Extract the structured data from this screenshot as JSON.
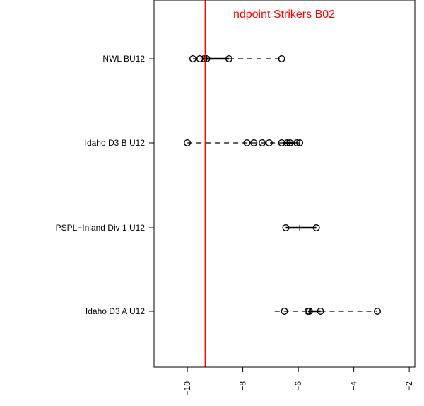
{
  "chart_data": {
    "type": "boxplot",
    "orientation": "horizontal",
    "title": "ndpoint Strikers B02",
    "xlim": [
      -11.2,
      -1.8
    ],
    "x_ticks": [
      -10,
      -8,
      -6,
      -4,
      -2
    ],
    "x_tick_labels": [
      "−10",
      "−8",
      "−6",
      "−4",
      "−2"
    ],
    "reference_line": {
      "x": -9.35,
      "color": "#ff0000"
    },
    "categories": [
      "NWL BU12",
      "Idaho D3 B U12",
      "PSPL−Inland Div 1 U12",
      "Idaho D3 A U12"
    ],
    "series": [
      {
        "category": "NWL BU12",
        "points": [
          -9.8,
          -9.55,
          -9.4,
          -9.3,
          -8.5,
          -6.6
        ],
        "box": {
          "q1": -9.45,
          "median": -9.3,
          "q3": -8.5
        },
        "whiskers": {
          "low": -9.8,
          "high": -6.6
        }
      },
      {
        "category": "Idaho D3 B U12",
        "points": [
          -10.0,
          -7.85,
          -7.6,
          -7.3,
          -7.05,
          -6.6,
          -6.4,
          -6.3,
          -6.05,
          -5.95
        ],
        "box": {
          "q1": -6.55,
          "median": -6.4,
          "q3": -6.1
        },
        "whiskers": {
          "low": -10.0,
          "high": -5.95
        }
      },
      {
        "category": "PSPL−Inland Div 1 U12",
        "points": [
          -6.45,
          -5.35
        ],
        "box": {
          "q1": -6.45,
          "median": -5.95,
          "q3": -5.35
        },
        "whiskers": {
          "low": -6.45,
          "high": -5.35
        }
      },
      {
        "category": "Idaho D3 A U12",
        "points": [
          -6.5,
          -5.65,
          -5.6,
          -5.2,
          -3.15
        ],
        "box": {
          "q1": -5.65,
          "median": -5.6,
          "q3": -5.2
        },
        "whiskers": {
          "low": -6.85,
          "high": -3.15
        }
      }
    ],
    "colors": {
      "axis": "#000000",
      "points": "#000000",
      "reference": "#ff0000"
    }
  }
}
